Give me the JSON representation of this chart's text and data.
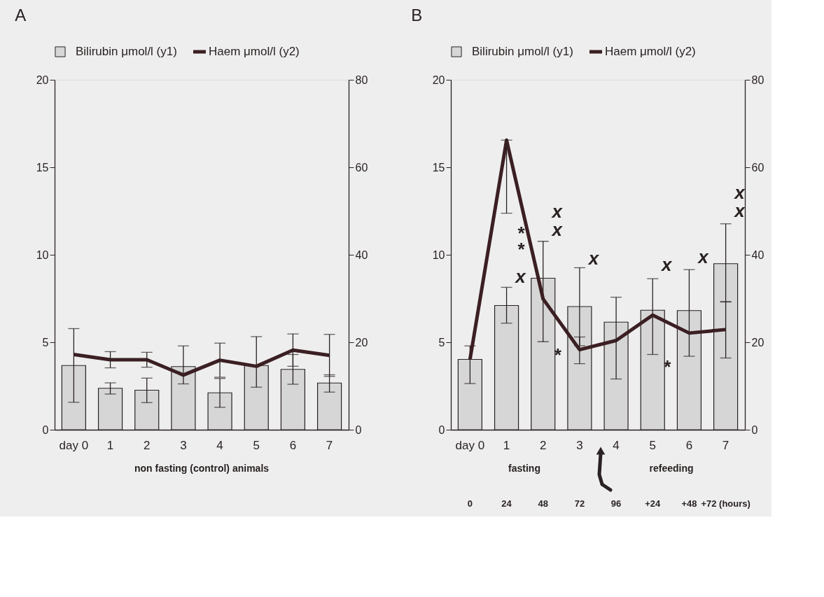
{
  "chart_data": [
    {
      "type": "bar",
      "title": "A",
      "categories": [
        "day 0",
        "1",
        "2",
        "3",
        "4",
        "5",
        "6",
        "7"
      ],
      "series": [
        {
          "name": "Bilirubin μmol/l (y1)",
          "color": "#d6d6d6",
          "values": [
            3.67,
            2.37,
            2.26,
            3.61,
            2.11,
            3.67,
            3.45,
            2.67
          ],
          "errors": [
            [
              1.57,
              5.78
            ],
            [
              2.04,
              2.68
            ],
            [
              1.55,
              2.95
            ],
            [
              2.62,
              4.79
            ],
            [
              1.28,
              2.93
            ],
            [
              2.43,
              5.32
            ],
            [
              2.6,
              4.3
            ],
            [
              2.15,
              3.14
            ]
          ]
        },
        {
          "name": "Haem μmol/l (y2)",
          "type": "line",
          "axis": "y2",
          "color": "#3b1f22",
          "values": [
            17.2,
            16.0,
            16.0,
            12.5,
            15.9,
            14.5,
            18.2,
            17.0
          ],
          "errors": [
            null,
            1.85,
            1.7,
            null,
            3.9,
            null,
            3.7,
            4.8
          ]
        }
      ],
      "ylim": [
        0,
        20
      ],
      "yticks": [
        0,
        5,
        10,
        15,
        20
      ],
      "y2lim": [
        0,
        80
      ],
      "y2ticks": [
        0,
        20,
        40,
        60,
        80
      ],
      "legend": "top left",
      "grid": false,
      "annotations": [
        "non fasting (control) animals"
      ]
    },
    {
      "type": "bar",
      "title": "B",
      "categories": [
        "day 0",
        "1",
        "2",
        "3",
        "4",
        "5",
        "6",
        "7"
      ],
      "series": [
        {
          "name": "Bilirubin μmol/l (y1)",
          "color": "#d6d6d6",
          "values": [
            4.02,
            7.1,
            8.66,
            7.04,
            6.15,
            6.83,
            6.81,
            9.49
          ],
          "errors": [
            [
              2.64,
              4.79
            ],
            [
              6.09,
              8.14
            ],
            [
              5.03,
              10.77
            ],
            [
              4.8,
              9.26
            ],
            null,
            [
              4.3,
              8.63
            ],
            [
              4.2,
              9.15
            ],
            [
              7.3,
              11.77
            ]
          ]
        },
        {
          "name": "Haem μmol/l (y2)",
          "type": "line",
          "axis": "y2",
          "color": "#3b1f22",
          "values": [
            16.1,
            66.2,
            29.9,
            18.3,
            20.4,
            26.2,
            22.1,
            22.9
          ],
          "errors": [
            null,
            [
              49.5,
              66.2
            ],
            null,
            [
              15.1,
              21.2
            ],
            [
              11.6,
              30.3
            ],
            null,
            null,
            [
              16.4,
              29.3
            ]
          ]
        }
      ],
      "ylim": [
        0,
        20
      ],
      "yticks": [
        0,
        5,
        10,
        15,
        20
      ],
      "y2lim": [
        0,
        80
      ],
      "y2ticks": [
        0,
        20,
        40,
        60,
        80
      ],
      "legend": "top left",
      "grid": false,
      "annotations": [
        "fasting",
        "refeeding",
        "x",
        "*",
        "*",
        "*",
        "x",
        "x",
        "x",
        "x",
        "*",
        "x",
        "x",
        "x",
        "0",
        "24",
        "48",
        "72",
        "96",
        "+24",
        "+48",
        "+72 (hours)"
      ]
    }
  ]
}
